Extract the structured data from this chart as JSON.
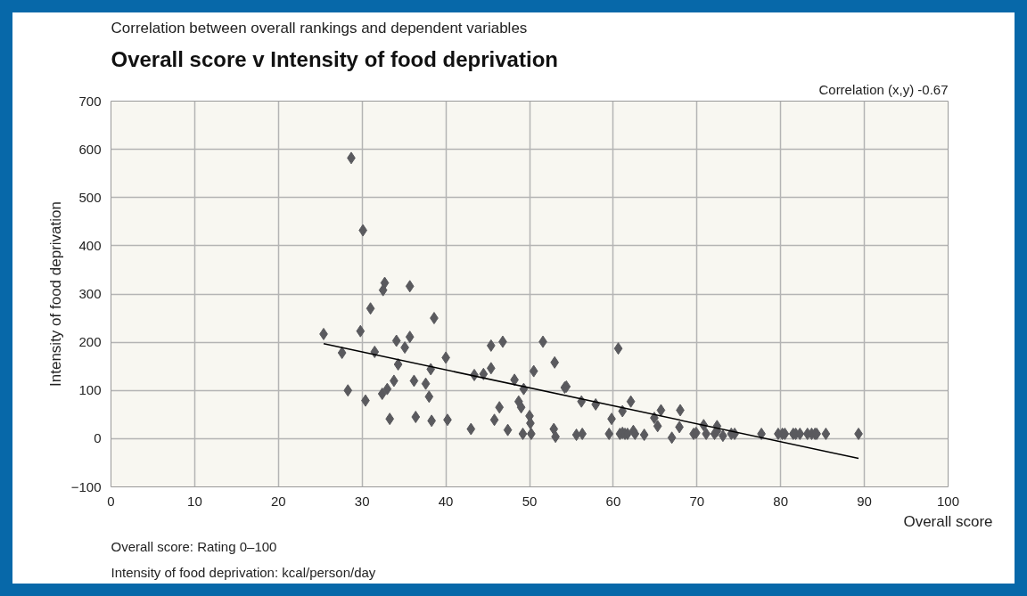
{
  "chart_data": {
    "type": "scatter",
    "title": "Overall score v Intensity of food deprivation",
    "subtitle": "Correlation between overall rankings and dependent variables",
    "xlabel": "Overall score",
    "ylabel": "Intensity of food deprivation",
    "annotations": [
      "Correlation (x,y) -0.67",
      "Overall score: Rating 0–100",
      "Intensity of food deprivation: kcal/person/day"
    ],
    "xlim": [
      0,
      100
    ],
    "xticks": [
      0,
      10,
      20,
      30,
      40,
      50,
      60,
      70,
      80,
      90,
      100
    ],
    "ylim": [
      -100,
      700
    ],
    "yticks": [
      -100,
      0,
      100,
      200,
      300,
      400,
      500,
      600,
      700
    ],
    "grid": true,
    "series": [
      {
        "marker": "diamond",
        "color": "#5a5a5e",
        "x": [
          25.4,
          27.6,
          28.3,
          28.7,
          30.1,
          29.8,
          30.4,
          31.0,
          31.5,
          32.7,
          32.5,
          32.4,
          33.0,
          33.3,
          33.8,
          34.1,
          34.3,
          35.1,
          35.7,
          35.7,
          36.2,
          36.4,
          37.6,
          38.0,
          38.2,
          38.3,
          38.6,
          40.0,
          40.2,
          43.0,
          43.4,
          44.5,
          45.4,
          45.4,
          45.8,
          46.4,
          46.8,
          47.4,
          48.2,
          48.7,
          49.0,
          49.2,
          49.3,
          50.0,
          50.1,
          50.2,
          50.5,
          51.6,
          52.9,
          53.0,
          53.1,
          54.2,
          54.4,
          55.6,
          56.2,
          56.3,
          57.9,
          59.5,
          59.8,
          60.6,
          60.8,
          61.1,
          61.1,
          61.4,
          61.7,
          62.1,
          62.4,
          62.6,
          63.7,
          64.9,
          65.3,
          65.7,
          67.0,
          67.9,
          68.0,
          69.6,
          69.9,
          70.8,
          71.1,
          72.1,
          72.4,
          72.4,
          73.1,
          74.1,
          74.5,
          77.7,
          79.7,
          80.2,
          80.5,
          81.5,
          81.8,
          82.3,
          83.2,
          83.7,
          84.1,
          84.3,
          85.4,
          89.3
        ],
        "values": [
          217,
          178,
          100,
          582,
          432,
          223,
          79,
          270,
          180,
          323,
          308,
          93,
          103,
          41,
          120,
          203,
          154,
          189,
          316,
          211,
          120,
          45,
          114,
          87,
          144,
          37,
          250,
          168,
          39,
          20,
          132,
          134,
          193,
          146,
          39,
          65,
          201,
          18,
          122,
          77,
          65,
          10,
          103,
          47,
          32,
          10,
          140,
          201,
          20,
          158,
          4,
          106,
          108,
          8,
          77,
          10,
          71,
          10,
          41,
          187,
          10,
          57,
          12,
          10,
          10,
          77,
          16,
          10,
          8,
          43,
          26,
          59,
          2,
          24,
          59,
          10,
          12,
          28,
          10,
          10,
          26,
          16,
          6,
          10,
          10,
          10,
          10,
          10,
          10,
          10,
          10,
          10,
          10,
          10,
          10,
          10,
          10,
          10
        ]
      },
      {
        "type": "line",
        "color": "#000000",
        "x": [
          25.4,
          89.3
        ],
        "values": [
          197,
          -41
        ]
      }
    ]
  }
}
